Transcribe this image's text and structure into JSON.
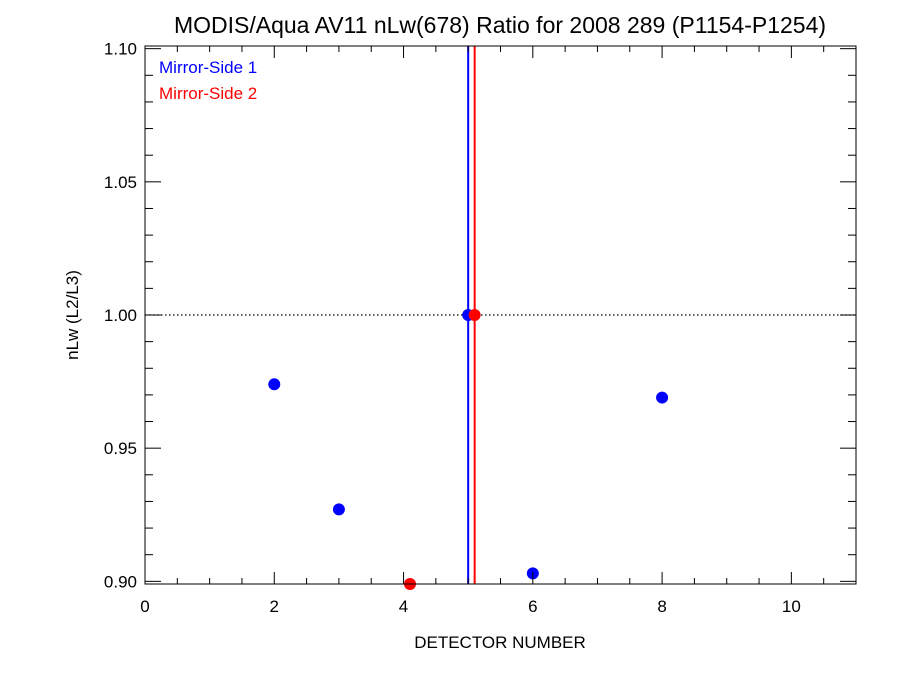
{
  "chart_data": {
    "type": "scatter",
    "title": "MODIS/Aqua AV11 nLw(678) Ratio for 2008 289 (P1154-P1254)",
    "xlabel": "DETECTOR NUMBER",
    "ylabel": "nLw (L2/L3)",
    "xlim": [
      0,
      11
    ],
    "ylim": [
      0.899,
      1.101
    ],
    "x_ticks": [
      0,
      2,
      4,
      6,
      8,
      10
    ],
    "x_tick_labels": [
      "0",
      "2",
      "4",
      "6",
      "8",
      "10"
    ],
    "y_ticks": [
      0.9,
      0.95,
      1.0,
      1.05,
      1.1
    ],
    "y_tick_labels": [
      "0.90",
      "0.95",
      "1.00",
      "1.05",
      "1.10"
    ],
    "x_minor_step": 0.5,
    "y_minor_step": 0.01,
    "reference_line": {
      "y": 1.0,
      "style": "dotted",
      "color": "#000000"
    },
    "legend_position": "top-left",
    "series": [
      {
        "name": "Mirror-Side 1",
        "color": "#0000ff",
        "x": [
          2,
          3,
          5,
          6,
          8
        ],
        "y": [
          0.974,
          0.927,
          1.0,
          0.903,
          0.969
        ],
        "vertical_line_x": 5.0
      },
      {
        "name": "Mirror-Side 2",
        "color": "#ff0000",
        "x": [
          4.1,
          5.1
        ],
        "y": [
          0.899,
          1.0
        ],
        "vertical_line_x": 5.1
      }
    ]
  }
}
